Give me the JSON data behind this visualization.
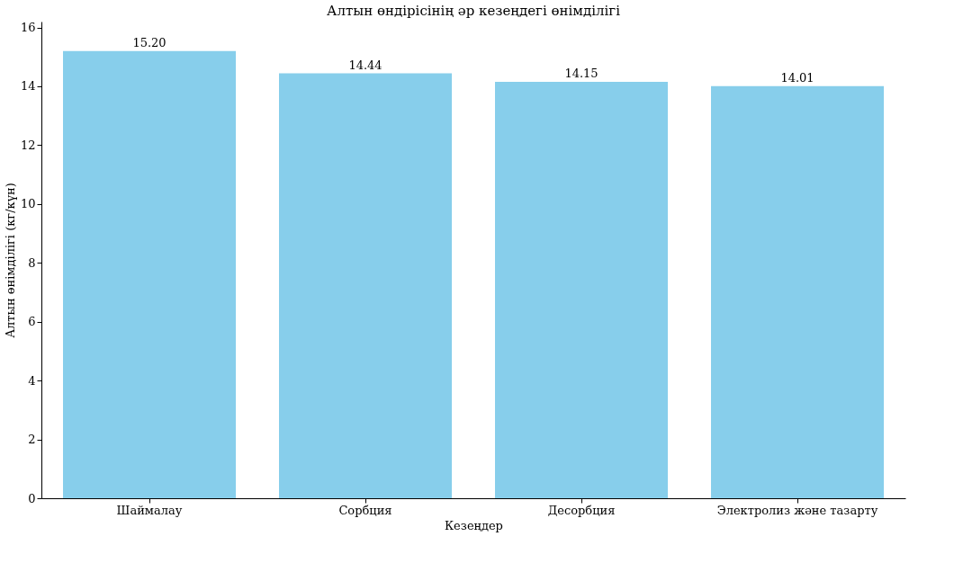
{
  "chart_data": {
    "type": "bar",
    "title": "Алтын өндірісінің әр кезеңдегі өнімділігі",
    "xlabel": "Кезеңдер",
    "ylabel": "Алтын өнімділігі (кг/күн)",
    "categories": [
      "Шаймалау",
      "Сорбция",
      "Десорбция",
      "Электролиз және тазарту"
    ],
    "values": [
      15.2,
      14.44,
      14.15,
      14.01
    ],
    "value_labels": [
      "15.20",
      "14.44",
      "14.15",
      "14.01"
    ],
    "color": "#87ceeb",
    "ylim": [
      0,
      16.2
    ],
    "yticks": [
      0,
      2,
      4,
      6,
      8,
      10,
      12,
      14,
      16
    ],
    "grid": false
  }
}
